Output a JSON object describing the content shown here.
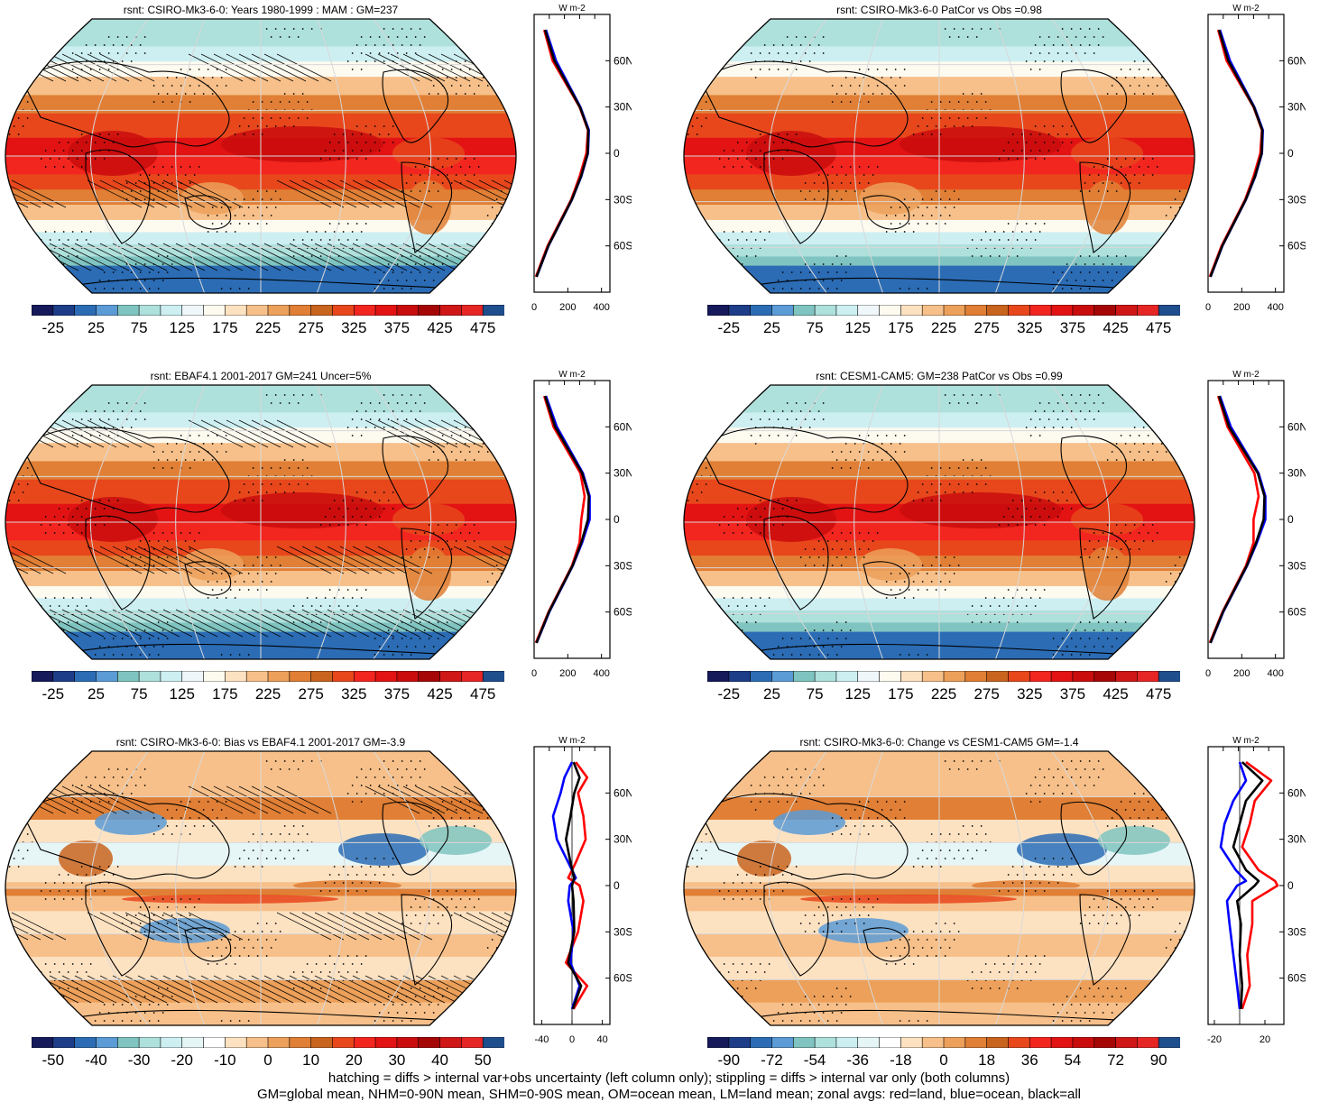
{
  "chart_data": [
    {
      "type": "heatmap",
      "title": "rsnt: CSIRO-Mk3-6-0: Years 1980-1999 : MAM : GM=237",
      "colorbar_labels": [
        "-25",
        "25",
        "75",
        "125",
        "175",
        "225",
        "275",
        "325",
        "375",
        "425",
        "475"
      ],
      "colorbar_levels": [
        -50,
        -25,
        0,
        25,
        50,
        75,
        100,
        125,
        150,
        175,
        200,
        225,
        250,
        275,
        300,
        325,
        350,
        375,
        400,
        425,
        450,
        475,
        500
      ],
      "zonal": {
        "unit": "W m-2",
        "xticks": [
          "0",
          "200",
          "400"
        ],
        "xlim": [
          0,
          450
        ],
        "lat_ticks": [
          "60N",
          "30N",
          "0",
          "30S",
          "60S"
        ]
      },
      "zonal_series": [
        {
          "color": "#ff0000",
          "lat": [
            80,
            60,
            30,
            15,
            0,
            -15,
            -30,
            -60,
            -80
          ],
          "values": [
            60,
            110,
            270,
            320,
            310,
            270,
            220,
            80,
            10
          ]
        },
        {
          "color": "#0000ff",
          "lat": [
            80,
            60,
            30,
            15,
            0,
            -15,
            -30,
            -60,
            -80
          ],
          "values": [
            70,
            130,
            275,
            325,
            320,
            280,
            225,
            85,
            15
          ]
        },
        {
          "color": "#000000",
          "lat": [
            80,
            60,
            30,
            15,
            0,
            -15,
            -30,
            -60,
            -80
          ],
          "values": [
            65,
            120,
            272,
            322,
            318,
            278,
            224,
            84,
            14
          ]
        }
      ]
    },
    {
      "type": "heatmap",
      "title": "rsnt: CSIRO-Mk3-6-0 PatCor vs Obs =0.98",
      "colorbar_labels": [
        "-25",
        "25",
        "75",
        "125",
        "175",
        "225",
        "275",
        "325",
        "375",
        "425",
        "475"
      ],
      "colorbar_levels": [
        -50,
        -25,
        0,
        25,
        50,
        75,
        100,
        125,
        150,
        175,
        200,
        225,
        250,
        275,
        300,
        325,
        350,
        375,
        400,
        425,
        450,
        475,
        500
      ],
      "zonal": {
        "unit": "W m-2",
        "xticks": [
          "0",
          "200",
          "400"
        ],
        "xlim": [
          0,
          450
        ],
        "lat_ticks": [
          "60N",
          "30N",
          "0",
          "30S",
          "60S"
        ]
      },
      "zonal_series": [
        {
          "color": "#ff0000",
          "lat": [
            80,
            60,
            30,
            15,
            0,
            -15,
            -30,
            -60,
            -80
          ],
          "values": [
            60,
            110,
            270,
            320,
            310,
            270,
            220,
            80,
            10
          ]
        },
        {
          "color": "#0000ff",
          "lat": [
            80,
            60,
            30,
            15,
            0,
            -15,
            -30,
            -60,
            -80
          ],
          "values": [
            70,
            130,
            275,
            325,
            320,
            280,
            225,
            85,
            15
          ]
        },
        {
          "color": "#000000",
          "lat": [
            80,
            60,
            30,
            15,
            0,
            -15,
            -30,
            -60,
            -80
          ],
          "values": [
            65,
            120,
            272,
            322,
            318,
            278,
            224,
            84,
            14
          ]
        }
      ]
    },
    {
      "type": "heatmap",
      "title": "rsnt: EBAF4.1 2001-2017 GM=241 Uncer=5%",
      "colorbar_labels": [
        "-25",
        "25",
        "75",
        "125",
        "175",
        "225",
        "275",
        "325",
        "375",
        "425",
        "475"
      ],
      "colorbar_levels": [
        -50,
        -25,
        0,
        25,
        50,
        75,
        100,
        125,
        150,
        175,
        200,
        225,
        250,
        275,
        300,
        325,
        350,
        375,
        400,
        425,
        450,
        475,
        500
      ],
      "zonal": {
        "unit": "W m-2",
        "xticks": [
          "0",
          "200",
          "400"
        ],
        "xlim": [
          0,
          450
        ],
        "lat_ticks": [
          "60N",
          "30N",
          "0",
          "30S",
          "60S"
        ]
      },
      "zonal_series": [
        {
          "color": "#ff0000",
          "lat": [
            80,
            60,
            30,
            15,
            0,
            -15,
            -30,
            -60,
            -80
          ],
          "values": [
            60,
            115,
            275,
            300,
            280,
            270,
            225,
            85,
            10
          ]
        },
        {
          "color": "#0000ff",
          "lat": [
            80,
            60,
            30,
            15,
            0,
            -15,
            -30,
            -60,
            -80
          ],
          "values": [
            70,
            135,
            290,
            330,
            330,
            285,
            230,
            90,
            15
          ]
        },
        {
          "color": "#000000",
          "lat": [
            80,
            60,
            30,
            15,
            0,
            -15,
            -30,
            -60,
            -80
          ],
          "values": [
            65,
            125,
            285,
            325,
            320,
            280,
            228,
            88,
            14
          ]
        }
      ]
    },
    {
      "type": "heatmap",
      "title": "rsnt: CESM1-CAM5: GM=238 PatCor vs Obs =0.99",
      "colorbar_labels": [
        "-25",
        "25",
        "75",
        "125",
        "175",
        "225",
        "275",
        "325",
        "375",
        "425",
        "475"
      ],
      "colorbar_levels": [
        -50,
        -25,
        0,
        25,
        50,
        75,
        100,
        125,
        150,
        175,
        200,
        225,
        250,
        275,
        300,
        325,
        350,
        375,
        400,
        425,
        450,
        475,
        500
      ],
      "zonal": {
        "unit": "W m-2",
        "xticks": [
          "0",
          "200",
          "400"
        ],
        "xlim": [
          0,
          450
        ],
        "lat_ticks": [
          "60N",
          "30N",
          "0",
          "30S",
          "60S"
        ]
      },
      "zonal_series": [
        {
          "color": "#ff0000",
          "lat": [
            80,
            60,
            30,
            15,
            0,
            -15,
            -30,
            -60,
            -80
          ],
          "values": [
            60,
            115,
            275,
            300,
            270,
            270,
            225,
            85,
            10
          ]
        },
        {
          "color": "#0000ff",
          "lat": [
            80,
            60,
            30,
            15,
            0,
            -15,
            -30,
            -60,
            -80
          ],
          "values": [
            70,
            135,
            300,
            340,
            340,
            290,
            232,
            90,
            15
          ]
        },
        {
          "color": "#000000",
          "lat": [
            80,
            60,
            30,
            15,
            0,
            -15,
            -30,
            -60,
            -80
          ],
          "values": [
            65,
            125,
            295,
            335,
            330,
            285,
            230,
            88,
            14
          ]
        }
      ]
    },
    {
      "type": "heatmap",
      "title": "rsnt: CSIRO-Mk3-6-0: Bias vs EBAF4.1 2001-2017 GM=-3.9",
      "colorbar_labels": [
        "-50",
        "-40",
        "-30",
        "-20",
        "-10",
        "0",
        "10",
        "20",
        "30",
        "40",
        "50"
      ],
      "colorbar_levels": [
        -55,
        -50,
        -45,
        -40,
        -35,
        -30,
        -25,
        -20,
        -15,
        -10,
        -5,
        0,
        5,
        10,
        15,
        20,
        25,
        30,
        35,
        40,
        45,
        50,
        55
      ],
      "zonal": {
        "unit": "W m-2",
        "xticks": [
          "-40",
          "0",
          "40"
        ],
        "xlim": [
          -50,
          50
        ],
        "lat_ticks": [
          "60N",
          "30N",
          "0",
          "30S",
          "60S"
        ]
      },
      "zonal_series": [
        {
          "color": "#ff0000",
          "lat": [
            80,
            70,
            60,
            45,
            30,
            15,
            5,
            0,
            -10,
            -30,
            -50,
            -65,
            -80
          ],
          "values": [
            5,
            20,
            8,
            15,
            18,
            5,
            -5,
            10,
            15,
            8,
            -8,
            20,
            2
          ]
        },
        {
          "color": "#0000ff",
          "lat": [
            80,
            70,
            60,
            45,
            30,
            15,
            5,
            0,
            -10,
            -30,
            -50,
            -65,
            -80
          ],
          "values": [
            0,
            -10,
            -15,
            -25,
            -20,
            -5,
            5,
            -3,
            -5,
            2,
            -2,
            10,
            0
          ]
        },
        {
          "color": "#000000",
          "lat": [
            80,
            70,
            60,
            45,
            30,
            15,
            5,
            0,
            -10,
            -30,
            -50,
            -65,
            -80
          ],
          "values": [
            2,
            10,
            3,
            -2,
            -8,
            -2,
            3,
            0,
            2,
            3,
            -5,
            12,
            1
          ]
        }
      ]
    },
    {
      "type": "heatmap",
      "title": "rsnt: CSIRO-Mk3-6-0: Change vs CESM1-CAM5 GM=-1.4",
      "colorbar_labels": [
        "-90",
        "-72",
        "-54",
        "-36",
        "-18",
        "0",
        "18",
        "36",
        "54",
        "72",
        "90"
      ],
      "colorbar_levels": [
        -99,
        -90,
        -81,
        -72,
        -63,
        -54,
        -45,
        -36,
        -27,
        -18,
        -9,
        0,
        9,
        18,
        27,
        36,
        45,
        54,
        63,
        72,
        81,
        90,
        99
      ],
      "zonal": {
        "unit": "W m-2",
        "xticks": [
          "-20",
          "20"
        ],
        "xlim": [
          -25,
          35
        ],
        "lat_ticks": [
          "60N",
          "30N",
          "0",
          "30S",
          "60S"
        ]
      },
      "zonal_series": [
        {
          "color": "#ff0000",
          "lat": [
            80,
            68,
            55,
            40,
            25,
            10,
            3,
            0,
            -10,
            -25,
            -45,
            -65,
            -80
          ],
          "values": [
            5,
            25,
            12,
            8,
            2,
            15,
            28,
            30,
            10,
            10,
            6,
            8,
            2
          ]
        },
        {
          "color": "#0000ff",
          "lat": [
            80,
            68,
            55,
            40,
            25,
            10,
            3,
            0,
            -10,
            -25,
            -45,
            -65,
            -80
          ],
          "values": [
            0,
            5,
            -5,
            -12,
            -15,
            -3,
            5,
            -2,
            -10,
            -8,
            -5,
            -2,
            0
          ]
        },
        {
          "color": "#000000",
          "lat": [
            80,
            68,
            55,
            40,
            25,
            10,
            3,
            0,
            -10,
            -25,
            -45,
            -65,
            -80
          ],
          "values": [
            2,
            18,
            5,
            0,
            -5,
            5,
            15,
            12,
            -2,
            1,
            0,
            2,
            1
          ]
        }
      ]
    }
  ],
  "footer": {
    "line1": "hatching = diffs > internal var+obs uncertainty (left column only); stippling = diffs > internal var only (both columns)",
    "line2": "GM=global mean, NHM=0-90N mean, SHM=0-90S mean, OM=ocean mean, LM=land mean; zonal avgs: red=land, blue=ocean, black=all"
  },
  "colors": {
    "sequential": [
      "#16195a",
      "#1d3d88",
      "#2b6cb5",
      "#5b9bd6",
      "#7fc4c0",
      "#aee0dc",
      "#cdeff2",
      "#f0f7fa",
      "#fdfbf0",
      "#fde2c2",
      "#f7c08a",
      "#eca05a",
      "#e07f35",
      "#c9641e",
      "#e8471c",
      "#f2251f",
      "#e31313",
      "#c90d0d",
      "#a50606",
      "#cf1717",
      "#e62525",
      "#1f4e8c"
    ],
    "diverging": [
      "#16195a",
      "#1d3d88",
      "#2b6cb5",
      "#5b9bd6",
      "#7fc4c0",
      "#aee0dc",
      "#cdeff2",
      "#e6f6f7",
      "#ffffff",
      "#fde2c2",
      "#f7c08a",
      "#eca05a",
      "#e07f35",
      "#c9641e",
      "#e8471c",
      "#f2251f",
      "#e31313",
      "#c90d0d",
      "#a50606",
      "#cf1717",
      "#e62525",
      "#1f4e8c"
    ]
  }
}
